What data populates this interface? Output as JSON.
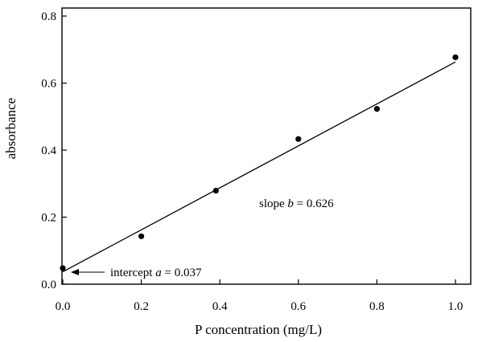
{
  "chart_data": {
    "type": "scatter",
    "xlabel": "P concentration (mg/L)",
    "ylabel": "absorbance",
    "xlim": [
      0.0,
      1.0
    ],
    "ylim": [
      0.0,
      0.8
    ],
    "x_ticks": [
      "0.0",
      "0.2",
      "0.4",
      "0.6",
      "0.8",
      "1.0"
    ],
    "y_ticks": [
      "0.0",
      "0.2",
      "0.4",
      "0.6",
      "0.8"
    ],
    "x_tick_values": [
      0.0,
      0.2,
      0.4,
      0.6,
      0.8,
      1.0
    ],
    "y_tick_values": [
      0.0,
      0.2,
      0.4,
      0.6,
      0.8
    ],
    "points": [
      {
        "x": 0.0,
        "y": 0.048
      },
      {
        "x": 0.2,
        "y": 0.143
      },
      {
        "x": 0.39,
        "y": 0.279
      },
      {
        "x": 0.6,
        "y": 0.433
      },
      {
        "x": 0.8,
        "y": 0.523
      },
      {
        "x": 1.0,
        "y": 0.677
      }
    ],
    "fit_line": {
      "intercept": 0.037,
      "slope": 0.626,
      "x_start": 0.0,
      "x_end": 1.0
    },
    "annotations": {
      "slope_prefix": "slope ",
      "slope_symbol": "b",
      "slope_value": " = 0.626",
      "intercept_prefix": "intercept ",
      "intercept_symbol": "a",
      "intercept_value": " = 0.037"
    },
    "grid": false,
    "colors": {
      "marks": "#000000",
      "background": "#ffffff"
    }
  }
}
